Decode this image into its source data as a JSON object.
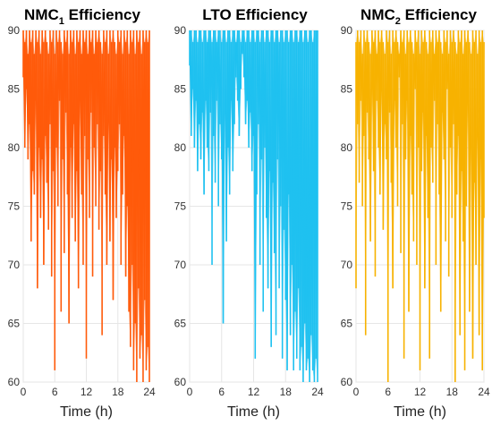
{
  "chart_data": [
    {
      "type": "line",
      "title_main": "NMC",
      "title_sub": "1",
      "title_rest": " Efficiency",
      "xlabel": "Time (h)",
      "ylabel": "",
      "xlim": [
        0,
        24
      ],
      "ylim": [
        60,
        90
      ],
      "xticks": [
        "0",
        "6",
        "12",
        "18",
        "24"
      ],
      "yticks": [
        "60",
        "65",
        "70",
        "75",
        "80",
        "85",
        "90"
      ],
      "grid": true,
      "color": "#ff5a0a",
      "series": [
        {
          "x": [
            0.0,
            0.3,
            0.6,
            0.9,
            1.2,
            1.5,
            1.8,
            2.1,
            2.4,
            2.7,
            3.0,
            3.3,
            3.6,
            3.9,
            4.2,
            4.5,
            4.8,
            5.1,
            5.4,
            5.7,
            6.0,
            6.3,
            6.6,
            6.9,
            7.2,
            7.5,
            7.8,
            8.1,
            8.4,
            8.7,
            9.0,
            9.3,
            9.6,
            9.9,
            10.2,
            10.5,
            10.8,
            11.1,
            11.4,
            11.7,
            12.0,
            12.3,
            12.6,
            12.9,
            13.2,
            13.5,
            13.8,
            14.1,
            14.4,
            14.7,
            15.0,
            15.3,
            15.6,
            15.9,
            16.2,
            16.5,
            16.8,
            17.1,
            17.4,
            17.7,
            18.0,
            18.3,
            18.6,
            18.9,
            19.2,
            19.5,
            19.8,
            20.1,
            20.4,
            20.7,
            21.0,
            21.3,
            21.6,
            21.9,
            22.2,
            22.5,
            22.8,
            23.1,
            23.4,
            23.7,
            24.0
          ],
          "y_low": [
            86,
            80,
            85,
            79,
            82,
            72,
            78,
            76,
            84,
            68,
            80,
            74,
            79,
            70,
            81,
            77,
            73,
            82,
            69,
            78,
            61,
            80,
            75,
            84,
            66,
            79,
            71,
            83,
            76,
            65,
            80,
            74,
            82,
            72,
            78,
            68,
            84,
            76,
            70,
            81,
            62,
            79,
            74,
            83,
            69,
            80,
            75,
            82,
            73,
            78,
            64,
            81,
            76,
            70,
            83,
            72,
            79,
            67,
            80,
            74,
            78,
            82,
            70,
            76,
            81,
            69,
            75,
            66,
            63,
            70,
            61,
            65,
            60,
            68,
            62,
            64,
            60,
            67,
            61,
            63,
            60
          ],
          "y_high": [
            90,
            89,
            90,
            88,
            90,
            89,
            90,
            88,
            90,
            89,
            90,
            88,
            90,
            89,
            90,
            89,
            88,
            90,
            89,
            90,
            88,
            90,
            89,
            90,
            89,
            88,
            90,
            89,
            90,
            88,
            90,
            89,
            90,
            88,
            90,
            89,
            90,
            88,
            90,
            89,
            90,
            88,
            90,
            89,
            90,
            88,
            90,
            89,
            90,
            89,
            88,
            90,
            89,
            90,
            88,
            90,
            89,
            90,
            89,
            88,
            90,
            89,
            90,
            88,
            90,
            89,
            90,
            88,
            90,
            89,
            90,
            88,
            90,
            89,
            90,
            88,
            90,
            89,
            90,
            89,
            90
          ]
        }
      ]
    },
    {
      "type": "line",
      "title_main": "LTO Efficiency",
      "title_sub": "",
      "title_rest": "",
      "xlabel": "Time (h)",
      "ylabel": "",
      "xlim": [
        0,
        24
      ],
      "ylim": [
        60,
        90
      ],
      "xticks": [
        "0",
        "6",
        "12",
        "18",
        "24"
      ],
      "yticks": [
        "60",
        "65",
        "70",
        "75",
        "80",
        "85",
        "90"
      ],
      "grid": true,
      "color": "#1fc1f0",
      "series": [
        {
          "x": [
            0.0,
            0.3,
            0.6,
            0.9,
            1.2,
            1.5,
            1.8,
            2.1,
            2.4,
            2.7,
            3.0,
            3.3,
            3.6,
            3.9,
            4.2,
            4.5,
            4.8,
            5.1,
            5.4,
            5.7,
            6.0,
            6.3,
            6.6,
            6.9,
            7.2,
            7.5,
            7.8,
            8.1,
            8.4,
            8.7,
            9.0,
            9.3,
            9.6,
            9.9,
            10.2,
            10.5,
            10.8,
            11.1,
            11.4,
            11.7,
            12.0,
            12.3,
            12.6,
            12.9,
            13.2,
            13.5,
            13.8,
            14.1,
            14.4,
            14.7,
            15.0,
            15.3,
            15.6,
            15.9,
            16.2,
            16.5,
            16.8,
            17.1,
            17.4,
            17.7,
            18.0,
            18.3,
            18.6,
            18.9,
            19.2,
            19.5,
            19.8,
            20.1,
            20.4,
            20.7,
            21.0,
            21.3,
            21.6,
            21.9,
            22.2,
            22.5,
            22.8,
            23.1,
            23.4,
            23.7,
            24.0
          ],
          "y_low": [
            87,
            81,
            85,
            80,
            84,
            78,
            82,
            79,
            83,
            76,
            84,
            80,
            78,
            83,
            70,
            81,
            77,
            84,
            75,
            82,
            79,
            65,
            83,
            72,
            80,
            76,
            84,
            78,
            82,
            86,
            84,
            81,
            85,
            88,
            86,
            82,
            84,
            80,
            83,
            78,
            81,
            62,
            76,
            82,
            70,
            79,
            66,
            80,
            74,
            68,
            78,
            63,
            77,
            71,
            64,
            79,
            68,
            75,
            62,
            73,
            67,
            61,
            76,
            64,
            70,
            61,
            66,
            62,
            68,
            61,
            63,
            60,
            65,
            61,
            62,
            60,
            64,
            61,
            60,
            62,
            60
          ],
          "y_high": [
            90,
            90,
            89,
            90,
            90,
            89,
            90,
            90,
            89,
            90,
            90,
            89,
            90,
            90,
            89,
            90,
            90,
            89,
            90,
            90,
            89,
            90,
            90,
            89,
            90,
            90,
            89,
            90,
            90,
            89,
            90,
            90,
            89,
            90,
            90,
            89,
            90,
            90,
            89,
            90,
            90,
            89,
            90,
            90,
            89,
            90,
            90,
            89,
            90,
            90,
            89,
            90,
            90,
            89,
            90,
            90,
            89,
            90,
            90,
            89,
            90,
            90,
            89,
            90,
            90,
            89,
            90,
            90,
            89,
            90,
            90,
            89,
            90,
            90,
            89,
            90,
            90,
            89,
            90,
            90,
            90
          ]
        }
      ]
    },
    {
      "type": "line",
      "title_main": "NMC",
      "title_sub": "2",
      "title_rest": " Efficiency",
      "xlabel": "Time (h)",
      "ylabel": "",
      "xlim": [
        0,
        24
      ],
      "ylim": [
        60,
        90
      ],
      "xticks": [
        "0",
        "6",
        "12",
        "18",
        "24"
      ],
      "yticks": [
        "60",
        "65",
        "70",
        "75",
        "80",
        "85",
        "90"
      ],
      "grid": true,
      "color": "#f7b200",
      "series": [
        {
          "x": [
            0.0,
            0.3,
            0.6,
            0.9,
            1.2,
            1.5,
            1.8,
            2.1,
            2.4,
            2.7,
            3.0,
            3.3,
            3.6,
            3.9,
            4.2,
            4.5,
            4.8,
            5.1,
            5.4,
            5.7,
            6.0,
            6.3,
            6.6,
            6.9,
            7.2,
            7.5,
            7.8,
            8.1,
            8.4,
            8.7,
            9.0,
            9.3,
            9.6,
            9.9,
            10.2,
            10.5,
            10.8,
            11.1,
            11.4,
            11.7,
            12.0,
            12.3,
            12.6,
            12.9,
            13.2,
            13.5,
            13.8,
            14.1,
            14.4,
            14.7,
            15.0,
            15.3,
            15.6,
            15.9,
            16.2,
            16.5,
            16.8,
            17.1,
            17.4,
            17.7,
            18.0,
            18.3,
            18.6,
            18.9,
            19.2,
            19.5,
            19.8,
            20.1,
            20.4,
            20.7,
            21.0,
            21.3,
            21.6,
            21.9,
            22.2,
            22.5,
            22.8,
            23.1,
            23.4,
            23.7,
            24.0
          ],
          "y_low": [
            68,
            82,
            77,
            84,
            75,
            81,
            64,
            83,
            79,
            72,
            85,
            78,
            69,
            84,
            80,
            76,
            86,
            73,
            82,
            79,
            60,
            83,
            77,
            68,
            84,
            80,
            75,
            86,
            71,
            82,
            62,
            79,
            84,
            66,
            81,
            76,
            72,
            85,
            70,
            80,
            61,
            78,
            83,
            68,
            81,
            74,
            62,
            80,
            77,
            84,
            70,
            82,
            76,
            66,
            83,
            79,
            72,
            85,
            69,
            80,
            74,
            82,
            60,
            76,
            81,
            64,
            78,
            72,
            61,
            75,
            84,
            66,
            80,
            62,
            77,
            70,
            83,
            64,
            79,
            61,
            74
          ],
          "y_high": [
            89,
            90,
            89,
            90,
            88,
            90,
            89,
            90,
            89,
            88,
            90,
            89,
            90,
            88,
            90,
            89,
            90,
            89,
            88,
            90,
            89,
            90,
            88,
            90,
            89,
            90,
            89,
            88,
            90,
            89,
            90,
            88,
            90,
            89,
            90,
            89,
            88,
            90,
            89,
            90,
            88,
            90,
            89,
            90,
            89,
            88,
            90,
            89,
            90,
            88,
            90,
            89,
            90,
            89,
            88,
            90,
            89,
            90,
            88,
            90,
            89,
            90,
            89,
            88,
            90,
            89,
            90,
            88,
            90,
            89,
            90,
            89,
            88,
            90,
            89,
            90,
            88,
            90,
            89,
            90,
            89
          ]
        }
      ]
    }
  ]
}
